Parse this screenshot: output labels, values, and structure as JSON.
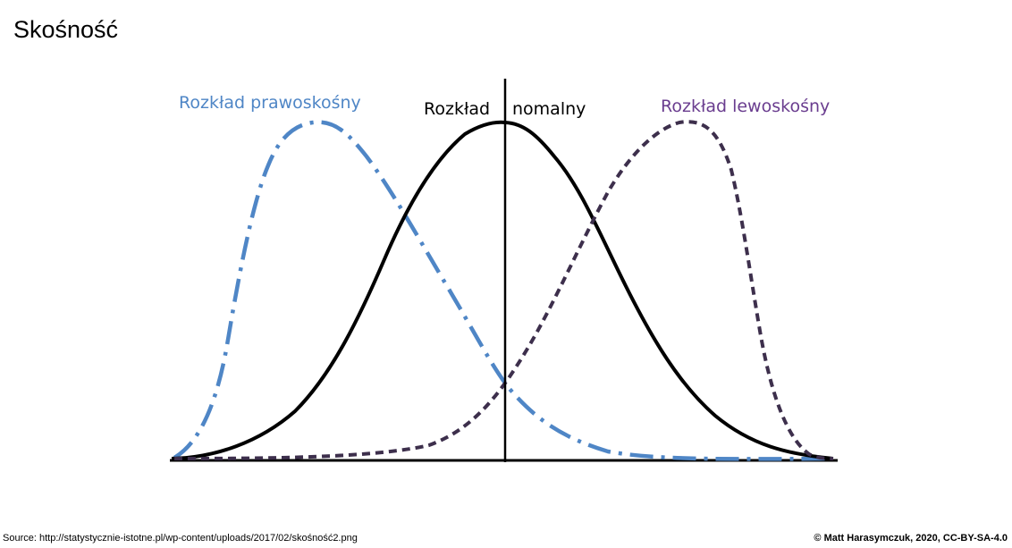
{
  "slide": {
    "title": "Skośność"
  },
  "figure": {
    "labels": {
      "right_skewed": "Rozkład prawoskośny",
      "normal_left": "Rozkład",
      "normal_right": "nomalny",
      "left_skewed": "Rozkład lewoskośny"
    },
    "colors": {
      "right_skewed": "#4f86c6",
      "normal": "#000000",
      "left_skewed": "#3d2f4c",
      "left_skewed_label": "#6a3d8f"
    }
  },
  "footer": {
    "source": "Source: http://statystycznie-istotne.pl/wp-content/uploads/2017/02/skośność2.png",
    "credit": "© Matt Harasymczuk, 2020, CC-BY-SA-4.0"
  }
}
